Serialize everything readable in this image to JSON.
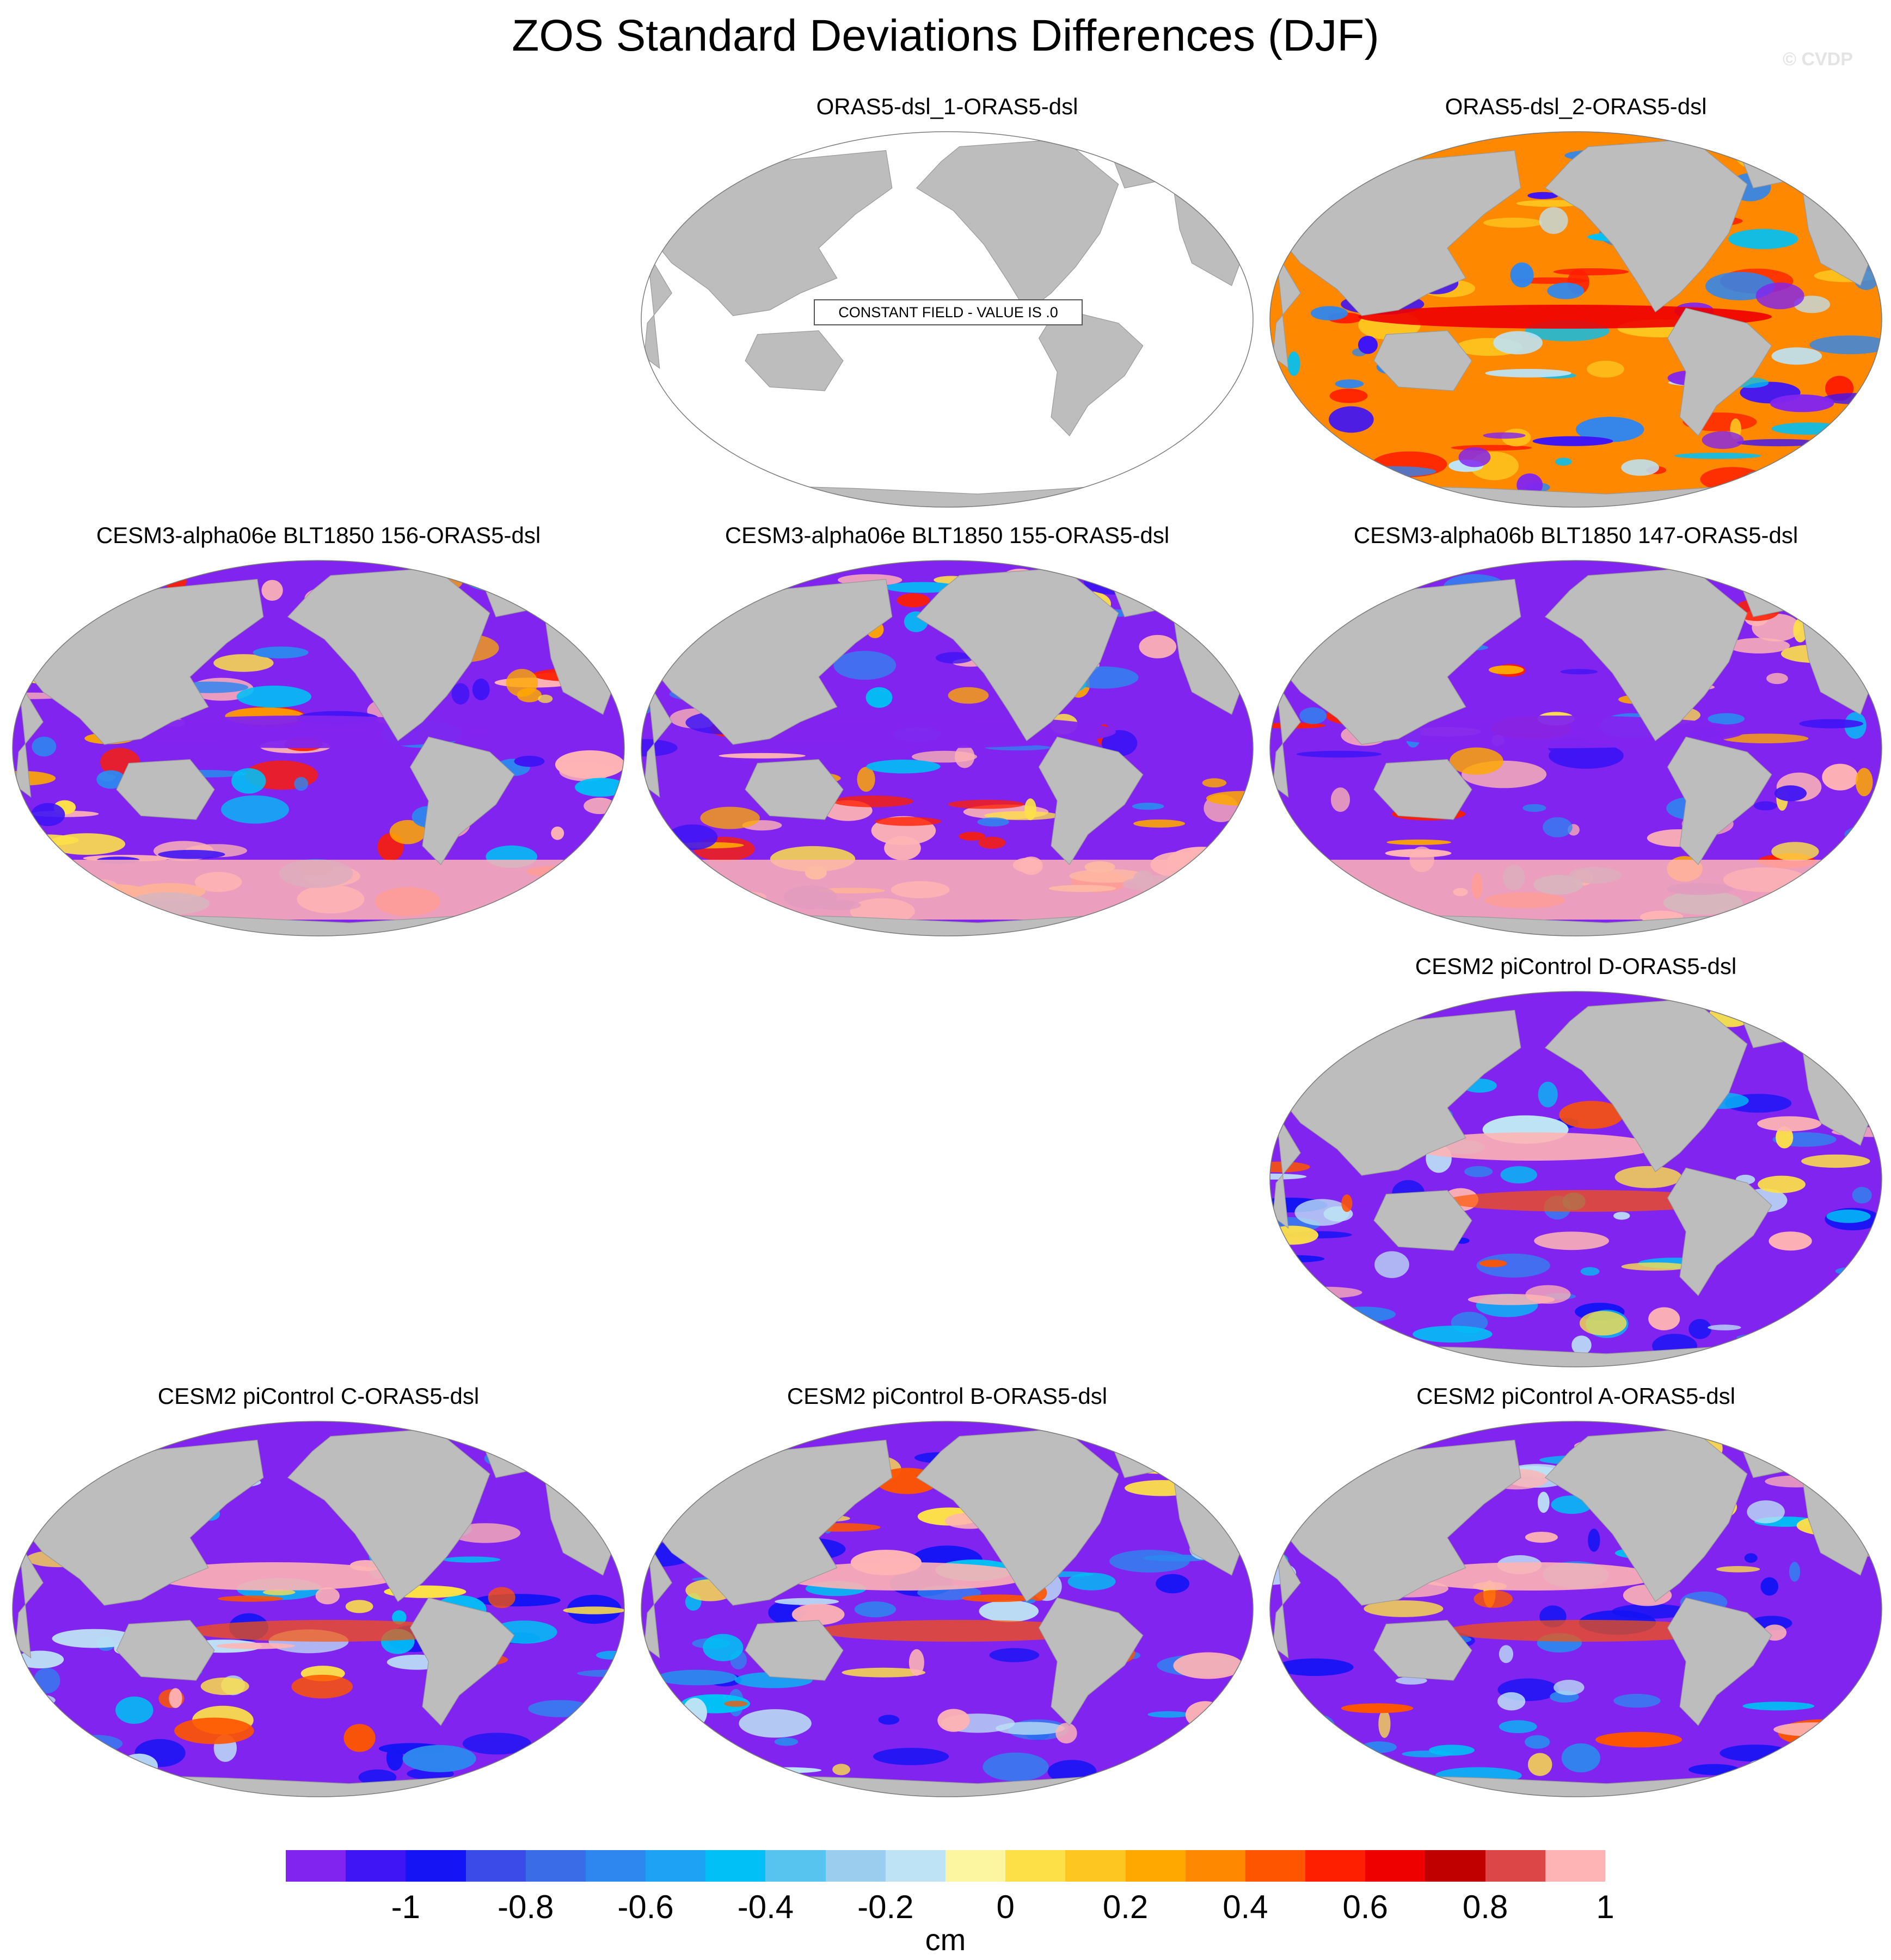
{
  "title": "ZOS Standard Deviations Differences (DJF)",
  "copyright": "© CVDP",
  "constant_field_label": "CONSTANT FIELD - VALUE IS .0",
  "panels": [
    {
      "title": "ORAS5-dsl_1-ORAS5-dsl",
      "field": "constant"
    },
    {
      "title": "ORAS5-dsl_2-ORAS5-dsl",
      "field": "mixed"
    },
    {
      "title": "CESM3-alpha06e BLT1850 156-ORAS5-dsl",
      "field": "warm"
    },
    {
      "title": "CESM3-alpha06e BLT1850 155-ORAS5-dsl",
      "field": "warm"
    },
    {
      "title": "CESM3-alpha06b BLT1850 147-ORAS5-dsl",
      "field": "warm"
    },
    {
      "title": "CESM2 piControl D-ORAS5-dsl",
      "field": "cold"
    },
    {
      "title": "CESM2 piControl C-ORAS5-dsl",
      "field": "cold"
    },
    {
      "title": "CESM2 piControl B-ORAS5-dsl",
      "field": "cold"
    },
    {
      "title": "CESM2 piControl A-ORAS5-dsl",
      "field": "cold"
    }
  ],
  "colorbar": {
    "colors": [
      "#8224ef",
      "#3f14f5",
      "#1414f5",
      "#3a4be8",
      "#3a6ce8",
      "#2e86ef",
      "#1ea2f3",
      "#00c0f5",
      "#57c4f0",
      "#9acdee",
      "#bde3f5",
      "#fdf6a0",
      "#fde048",
      "#fec620",
      "#fea800",
      "#fe8800",
      "#fe5500",
      "#fe1e00",
      "#ee0000",
      "#c00000",
      "#dc4646",
      "#feb4b4"
    ],
    "tick_labels": [
      "-1",
      "-0.8",
      "-0.6",
      "-0.4",
      "-0.2",
      "0",
      "0.2",
      "0.4",
      "0.6",
      "0.8",
      "1"
    ],
    "units": "cm"
  }
}
